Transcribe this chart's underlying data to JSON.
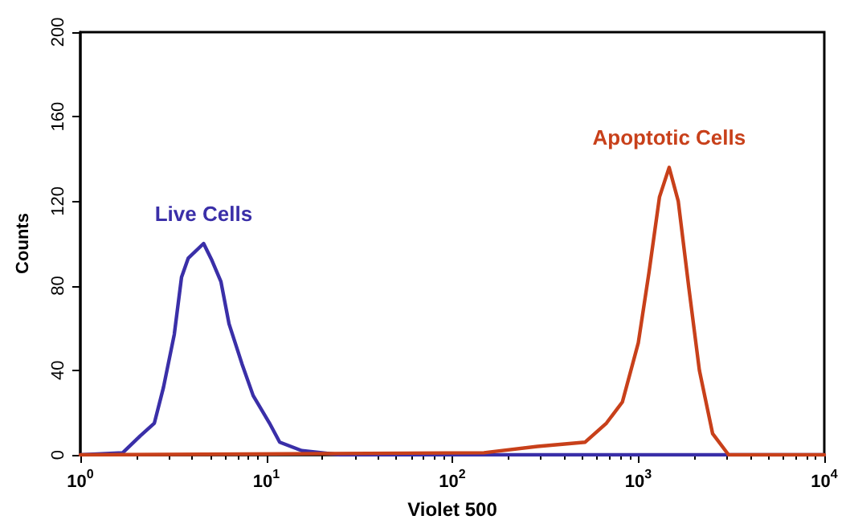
{
  "chart_data": {
    "type": "line",
    "xlabel": "Violet 500",
    "ylabel": "Counts",
    "log": "x",
    "xlim": [
      1,
      10000
    ],
    "ylim": [
      0,
      200
    ],
    "xticks": [
      {
        "value": 1,
        "label": "10$^{0}$"
      },
      {
        "value": 10,
        "label": "10$^{1}$"
      },
      {
        "value": 100,
        "label": "10$^{2}$"
      },
      {
        "value": 1000,
        "label": "10$^{3}$"
      },
      {
        "value": 10000,
        "label": "10$^{4}$"
      }
    ],
    "yticks": [
      0,
      40,
      80,
      120,
      160,
      200
    ],
    "grid": false,
    "marker": "none",
    "line_style": "solid",
    "series": [
      {
        "name": "Live Cells",
        "color": "#3a2fa8",
        "x": [
          1,
          1.69,
          2.1,
          2.5,
          2.8,
          3.2,
          3.5,
          3.8,
          4.6,
          5.1,
          5.7,
          6.3,
          7.4,
          8.5,
          10.4,
          11.8,
          15.5,
          25,
          10000
        ],
        "values": [
          0,
          1,
          9,
          15,
          32,
          57,
          84,
          93,
          100,
          92,
          82,
          62,
          43,
          28,
          15,
          6,
          2,
          0,
          0
        ]
      },
      {
        "name": "Apoptotic Cells",
        "color": "#c8401a",
        "x": [
          1,
          148,
          287,
          518,
          674,
          821,
          1000,
          1140,
          1300,
          1465,
          1640,
          1870,
          2130,
          2510,
          3060,
          10000
        ],
        "values": [
          0,
          1,
          4,
          6,
          15,
          25,
          53,
          86,
          122,
          136,
          120,
          79,
          40,
          10,
          0,
          0
        ]
      }
    ]
  }
}
